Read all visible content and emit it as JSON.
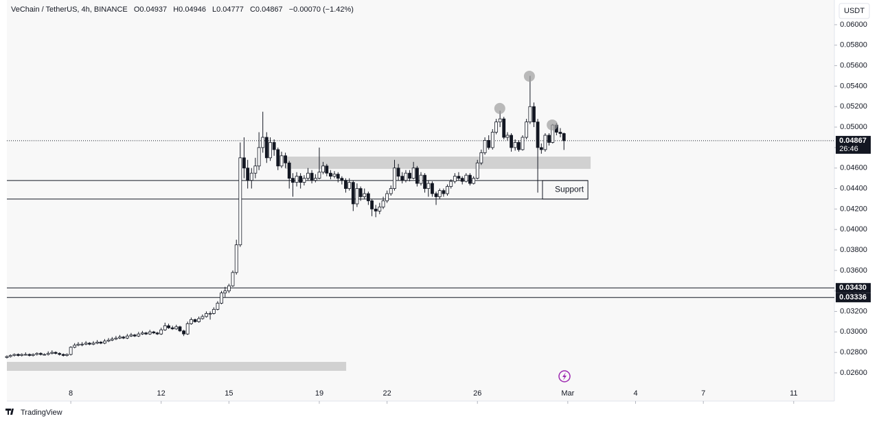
{
  "chart_data": {
    "type": "candlestick",
    "title": "VeChain / TetherUS, 4h, BINANCE",
    "ohlc_labels": [
      "O0.04937",
      "H0.04946",
      "L0.04777",
      "C0.04867",
      "−0.00070 (−1.42%)"
    ],
    "currency": "USDT",
    "brand": "TradingView",
    "up_color": "#ffffff",
    "down_color": "#131722",
    "wick_color": "#131722",
    "xlim": [
      5.17,
      41.8
    ],
    "xticks": [
      8,
      12,
      15,
      19,
      22,
      26,
      {
        "value": 30,
        "label": "Mar"
      },
      {
        "value": 33,
        "label": "4"
      },
      {
        "value": 36,
        "label": "7"
      },
      {
        "value": 40,
        "label": "11"
      }
    ],
    "ylim": [
      0.02325,
      0.06241
    ],
    "yticks": [
      {
        "value": 0.026,
        "label": "0.02600"
      },
      {
        "value": 0.028,
        "label": "0.02800"
      },
      {
        "value": 0.03,
        "label": "0.03000"
      },
      {
        "value": 0.032,
        "label": "0.03200"
      },
      {
        "value": 0.034,
        "label": "0.03400"
      },
      {
        "value": 0.036,
        "label": "0.03600"
      },
      {
        "value": 0.038,
        "label": "0.03800"
      },
      {
        "value": 0.04,
        "label": "0.04000"
      },
      {
        "value": 0.042,
        "label": "0.04200"
      },
      {
        "value": 0.044,
        "label": "0.04400"
      },
      {
        "value": 0.046,
        "label": "0.04600"
      },
      {
        "value": 0.048,
        "label": "0.04800"
      },
      {
        "value": 0.05,
        "label": "0.05000"
      },
      {
        "value": 0.052,
        "label": "0.05200"
      },
      {
        "value": 0.054,
        "label": "0.05400"
      },
      {
        "value": 0.056,
        "label": "0.05600"
      },
      {
        "value": 0.058,
        "label": "0.05800"
      },
      {
        "value": 0.06,
        "label": "0.06000"
      }
    ],
    "last_price": {
      "value": 0.04867,
      "label": "0.04867",
      "countdown": "26:46"
    },
    "levels": [
      {
        "value": 0.0343,
        "label": "0.03430"
      },
      {
        "value": 0.03336,
        "label": "0.03336"
      }
    ],
    "support_lines": [
      0.04478,
      0.04297
    ],
    "support_box": {
      "text": "Support",
      "x": [
        28.88,
        30.89
      ],
      "y": [
        0.04297,
        0.04478
      ]
    },
    "zones": [
      {
        "x": [
          17.48,
          31.01
        ],
        "y": [
          0.04592,
          0.04712
        ]
      },
      {
        "x": [
          5.17,
          20.19
        ],
        "y": [
          0.0262,
          0.02707
        ]
      }
    ],
    "markers": [
      {
        "x": 26.99,
        "y": 0.05182
      },
      {
        "x": 28.3,
        "y": 0.05497
      },
      {
        "x": 29.31,
        "y": 0.05021
      }
    ],
    "x": [
      5.17,
      5.33,
      5.5,
      5.67,
      5.83,
      6,
      6.17,
      6.33,
      6.5,
      6.67,
      6.83,
      7,
      7.17,
      7.33,
      7.5,
      7.67,
      7.83,
      8,
      8.17,
      8.33,
      8.5,
      8.67,
      8.83,
      9,
      9.17,
      9.33,
      9.5,
      9.67,
      9.83,
      10,
      10.17,
      10.33,
      10.5,
      10.67,
      10.83,
      11,
      11.17,
      11.33,
      11.5,
      11.67,
      11.83,
      12,
      12.17,
      12.33,
      12.5,
      12.67,
      12.83,
      13,
      13.17,
      13.33,
      13.5,
      13.67,
      13.83,
      14,
      14.17,
      14.33,
      14.5,
      14.67,
      14.83,
      15,
      15.17,
      15.33,
      15.5,
      15.67,
      15.83,
      16,
      16.17,
      16.33,
      16.5,
      16.67,
      16.83,
      17,
      17.17,
      17.33,
      17.5,
      17.67,
      17.83,
      18,
      18.17,
      18.33,
      18.5,
      18.67,
      18.83,
      19,
      19.17,
      19.33,
      19.5,
      19.67,
      19.83,
      20,
      20.17,
      20.33,
      20.5,
      20.67,
      20.83,
      21,
      21.17,
      21.33,
      21.5,
      21.67,
      21.83,
      22,
      22.17,
      22.33,
      22.5,
      22.67,
      22.83,
      23,
      23.17,
      23.33,
      23.5,
      23.67,
      23.83,
      24,
      24.17,
      24.33,
      24.5,
      24.67,
      24.83,
      25,
      25.17,
      25.33,
      25.5,
      25.67,
      25.83,
      26,
      26.17,
      26.33,
      26.5,
      26.67,
      26.83,
      27,
      27.17,
      27.33,
      27.5,
      27.67,
      27.83,
      28,
      28.17,
      28.33,
      28.5,
      28.67,
      28.83,
      29,
      29.17,
      29.33,
      29.5,
      29.67,
      29.83
    ],
    "candles": [
      [
        0.0275,
        0.0277,
        0.0274,
        0.0276
      ],
      [
        0.0276,
        0.0278,
        0.0275,
        0.0277
      ],
      [
        0.0277,
        0.0279,
        0.0276,
        0.0278
      ],
      [
        0.0278,
        0.0279,
        0.0276,
        0.0277
      ],
      [
        0.0277,
        0.0279,
        0.0276,
        0.0278
      ],
      [
        0.0278,
        0.028,
        0.0277,
        0.0278
      ],
      [
        0.0278,
        0.0279,
        0.0276,
        0.0277
      ],
      [
        0.0277,
        0.0279,
        0.0276,
        0.0278
      ],
      [
        0.0278,
        0.028,
        0.0277,
        0.0279
      ],
      [
        0.0279,
        0.028,
        0.0277,
        0.0278
      ],
      [
        0.0278,
        0.0279,
        0.0277,
        0.0278
      ],
      [
        0.0278,
        0.0281,
        0.0277,
        0.0279
      ],
      [
        0.0279,
        0.0282,
        0.0278,
        0.028
      ],
      [
        0.028,
        0.0281,
        0.0278,
        0.0279
      ],
      [
        0.0279,
        0.028,
        0.0277,
        0.0278
      ],
      [
        0.0278,
        0.0279,
        0.0276,
        0.0277
      ],
      [
        0.0277,
        0.0279,
        0.0276,
        0.0278
      ],
      [
        0.0278,
        0.0286,
        0.0277,
        0.0285
      ],
      [
        0.0285,
        0.0289,
        0.0284,
        0.0287
      ],
      [
        0.0287,
        0.029,
        0.0286,
        0.0288
      ],
      [
        0.0288,
        0.029,
        0.0286,
        0.0288
      ],
      [
        0.0288,
        0.0291,
        0.0287,
        0.0289
      ],
      [
        0.0289,
        0.029,
        0.0287,
        0.0288
      ],
      [
        0.0288,
        0.0291,
        0.0287,
        0.0289
      ],
      [
        0.0289,
        0.0292,
        0.0288,
        0.029
      ],
      [
        0.029,
        0.0291,
        0.0288,
        0.0289
      ],
      [
        0.0289,
        0.0293,
        0.0288,
        0.0291
      ],
      [
        0.0291,
        0.0294,
        0.029,
        0.0292
      ],
      [
        0.0292,
        0.0295,
        0.0291,
        0.0293
      ],
      [
        0.0293,
        0.0296,
        0.0292,
        0.0294
      ],
      [
        0.0294,
        0.0297,
        0.0293,
        0.0295
      ],
      [
        0.0295,
        0.0296,
        0.0293,
        0.0294
      ],
      [
        0.0294,
        0.0298,
        0.0293,
        0.0296
      ],
      [
        0.0296,
        0.0299,
        0.0295,
        0.0297
      ],
      [
        0.0297,
        0.0298,
        0.0295,
        0.0296
      ],
      [
        0.0296,
        0.03,
        0.0295,
        0.0298
      ],
      [
        0.0298,
        0.0301,
        0.0297,
        0.0299
      ],
      [
        0.0299,
        0.03,
        0.0297,
        0.0298
      ],
      [
        0.0298,
        0.0302,
        0.0297,
        0.03
      ],
      [
        0.03,
        0.0301,
        0.0298,
        0.0299
      ],
      [
        0.0299,
        0.03,
        0.0297,
        0.0298
      ],
      [
        0.0298,
        0.0304,
        0.0297,
        0.0302
      ],
      [
        0.0302,
        0.0309,
        0.0301,
        0.0306
      ],
      [
        0.0306,
        0.0308,
        0.0303,
        0.0304
      ],
      [
        0.0304,
        0.0306,
        0.0302,
        0.0303
      ],
      [
        0.0303,
        0.0307,
        0.0302,
        0.0305
      ],
      [
        0.0305,
        0.0306,
        0.03,
        0.0301
      ],
      [
        0.0301,
        0.0302,
        0.0296,
        0.0298
      ],
      [
        0.0298,
        0.031,
        0.0297,
        0.0308
      ],
      [
        0.0308,
        0.0314,
        0.0307,
        0.0312
      ],
      [
        0.0312,
        0.0313,
        0.0309,
        0.031
      ],
      [
        0.031,
        0.0315,
        0.0309,
        0.0313
      ],
      [
        0.0313,
        0.0317,
        0.0312,
        0.0315
      ],
      [
        0.0315,
        0.032,
        0.0314,
        0.0318
      ],
      [
        0.0318,
        0.032,
        0.0312,
        0.0318
      ],
      [
        0.0318,
        0.0324,
        0.0317,
        0.0322
      ],
      [
        0.0322,
        0.033,
        0.0321,
        0.0328
      ],
      [
        0.0328,
        0.034,
        0.0327,
        0.0338
      ],
      [
        0.0338,
        0.0344,
        0.0334,
        0.034
      ],
      [
        0.034,
        0.0347,
        0.0338,
        0.0345
      ],
      [
        0.0345,
        0.036,
        0.0344,
        0.0358
      ],
      [
        0.0358,
        0.039,
        0.0356,
        0.0385
      ],
      [
        0.0385,
        0.0485,
        0.0383,
        0.047
      ],
      [
        0.047,
        0.049,
        0.045,
        0.046
      ],
      [
        0.046,
        0.0468,
        0.044,
        0.0448
      ],
      [
        0.0448,
        0.046,
        0.044,
        0.0455
      ],
      [
        0.0455,
        0.047,
        0.045,
        0.0462
      ],
      [
        0.0462,
        0.0495,
        0.0458,
        0.048
      ],
      [
        0.048,
        0.0515,
        0.0475,
        0.049
      ],
      [
        0.049,
        0.0495,
        0.0465,
        0.047
      ],
      [
        0.047,
        0.049,
        0.0467,
        0.0485
      ],
      [
        0.0485,
        0.0488,
        0.0472,
        0.0478
      ],
      [
        0.0478,
        0.048,
        0.0458,
        0.0462
      ],
      [
        0.0462,
        0.0476,
        0.046,
        0.0472
      ],
      [
        0.0472,
        0.0475,
        0.046,
        0.0465
      ],
      [
        0.0465,
        0.0467,
        0.044,
        0.045
      ],
      [
        0.045,
        0.0455,
        0.0432,
        0.0446
      ],
      [
        0.0446,
        0.0456,
        0.0442,
        0.0452
      ],
      [
        0.0452,
        0.0455,
        0.044,
        0.0446
      ],
      [
        0.0446,
        0.0453,
        0.0443,
        0.045
      ],
      [
        0.045,
        0.046,
        0.0448,
        0.0455
      ],
      [
        0.0455,
        0.0458,
        0.0445,
        0.0448
      ],
      [
        0.0448,
        0.0454,
        0.0446,
        0.045
      ],
      [
        0.045,
        0.048,
        0.0449,
        0.0456
      ],
      [
        0.0456,
        0.0466,
        0.0454,
        0.0462
      ],
      [
        0.0462,
        0.0464,
        0.0452,
        0.0455
      ],
      [
        0.0455,
        0.0458,
        0.0449,
        0.0452
      ],
      [
        0.0452,
        0.0457,
        0.045,
        0.0454
      ],
      [
        0.0454,
        0.0456,
        0.0446,
        0.045
      ],
      [
        0.045,
        0.0452,
        0.0444,
        0.0448
      ],
      [
        0.0448,
        0.045,
        0.0436,
        0.044
      ],
      [
        0.044,
        0.045,
        0.0438,
        0.0446
      ],
      [
        0.0446,
        0.0448,
        0.0418,
        0.0425
      ],
      [
        0.0425,
        0.0445,
        0.0422,
        0.044
      ],
      [
        0.044,
        0.0442,
        0.0428,
        0.0432
      ],
      [
        0.0432,
        0.044,
        0.043,
        0.0435
      ],
      [
        0.0435,
        0.0437,
        0.0424,
        0.0428
      ],
      [
        0.0428,
        0.043,
        0.0413,
        0.042
      ],
      [
        0.042,
        0.0424,
        0.0412,
        0.0418
      ],
      [
        0.0418,
        0.0426,
        0.0415,
        0.0422
      ],
      [
        0.0422,
        0.0432,
        0.042,
        0.0428
      ],
      [
        0.0428,
        0.0438,
        0.0426,
        0.0435
      ],
      [
        0.0435,
        0.0443,
        0.0433,
        0.044
      ],
      [
        0.044,
        0.0468,
        0.0438,
        0.046
      ],
      [
        0.046,
        0.0464,
        0.0448,
        0.0452
      ],
      [
        0.0452,
        0.0456,
        0.0445,
        0.0448
      ],
      [
        0.0448,
        0.0458,
        0.0446,
        0.0455
      ],
      [
        0.0455,
        0.0458,
        0.0447,
        0.045
      ],
      [
        0.045,
        0.0466,
        0.0449,
        0.046
      ],
      [
        0.046,
        0.0462,
        0.0442,
        0.0445
      ],
      [
        0.0445,
        0.0456,
        0.0443,
        0.0453
      ],
      [
        0.0453,
        0.0455,
        0.0436,
        0.044
      ],
      [
        0.044,
        0.0448,
        0.0432,
        0.0445
      ],
      [
        0.0445,
        0.0447,
        0.0432,
        0.0435
      ],
      [
        0.0435,
        0.0437,
        0.0424,
        0.0432
      ],
      [
        0.0432,
        0.044,
        0.043,
        0.0438
      ],
      [
        0.0438,
        0.044,
        0.0432,
        0.0435
      ],
      [
        0.0435,
        0.0444,
        0.0433,
        0.0442
      ],
      [
        0.0442,
        0.0449,
        0.044,
        0.0447
      ],
      [
        0.0447,
        0.0455,
        0.0445,
        0.0452
      ],
      [
        0.0452,
        0.0456,
        0.0448,
        0.045
      ],
      [
        0.045,
        0.0452,
        0.0444,
        0.0447
      ],
      [
        0.0447,
        0.0455,
        0.0446,
        0.0453
      ],
      [
        0.0453,
        0.0455,
        0.0443,
        0.0445
      ],
      [
        0.0445,
        0.0452,
        0.0444,
        0.045
      ],
      [
        0.045,
        0.0468,
        0.0449,
        0.0465
      ],
      [
        0.0465,
        0.0478,
        0.0463,
        0.0475
      ],
      [
        0.0475,
        0.049,
        0.0473,
        0.0487
      ],
      [
        0.0487,
        0.0492,
        0.0478,
        0.048
      ],
      [
        0.048,
        0.0498,
        0.0478,
        0.0495
      ],
      [
        0.0495,
        0.0508,
        0.0493,
        0.0505
      ],
      [
        0.0505,
        0.0516,
        0.05,
        0.0508
      ],
      [
        0.0508,
        0.051,
        0.0488,
        0.049
      ],
      [
        0.049,
        0.0495,
        0.0487,
        0.0492
      ],
      [
        0.0492,
        0.0494,
        0.0476,
        0.048
      ],
      [
        0.048,
        0.0488,
        0.0477,
        0.0485
      ],
      [
        0.0485,
        0.0487,
        0.0476,
        0.0478
      ],
      [
        0.0478,
        0.0492,
        0.0477,
        0.049
      ],
      [
        0.049,
        0.0508,
        0.0488,
        0.0505
      ],
      [
        0.0505,
        0.055,
        0.0503,
        0.052
      ],
      [
        0.052,
        0.0524,
        0.05,
        0.0505
      ],
      [
        0.0505,
        0.0508,
        0.0436,
        0.048
      ],
      [
        0.048,
        0.0484,
        0.0474,
        0.0478
      ],
      [
        0.0478,
        0.0494,
        0.0476,
        0.0492
      ],
      [
        0.0492,
        0.0494,
        0.0482,
        0.0485
      ],
      [
        0.0485,
        0.0503,
        0.0484,
        0.0502
      ],
      [
        0.0502,
        0.0504,
        0.0492,
        0.0495
      ],
      [
        0.0495,
        0.0499,
        0.049,
        0.04937
      ],
      [
        0.04937,
        0.04946,
        0.04777,
        0.04867
      ]
    ]
  }
}
